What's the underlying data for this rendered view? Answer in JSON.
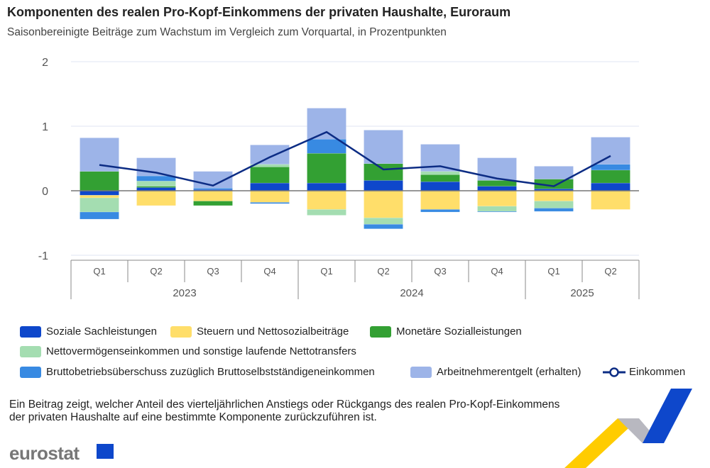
{
  "title": "Komponenten des realen Pro-Kopf-Einkommens der privaten Haushalte, Euroraum",
  "subtitle": "Saisonbereinigte Beiträge zum Wachstum im Vergleich zum Vorquartal, in Prozentpunkten",
  "note_line1": "Ein Beitrag zeigt, welcher Anteil des vierteljährlichen Anstiegs oder Rückgangs des realen Pro-Kopf-Einkommens",
  "note_line2": "der privaten Haushalte auf eine bestimmte Komponente zurückzuführen ist.",
  "logo": "eurostat",
  "chart_data": {
    "type": "bar",
    "stacked": true,
    "title": "Komponenten des realen Pro-Kopf-Einkommens der privaten Haushalte, Euroraum",
    "subtitle": "Saisonbereinigte Beiträge zum Wachstum im Vergleich zum Vorquartal, in Prozentpunkten",
    "categories": [
      "Q1",
      "Q2",
      "Q3",
      "Q4",
      "Q1",
      "Q2",
      "Q3",
      "Q4",
      "Q1",
      "Q2"
    ],
    "years": [
      {
        "label": "2023",
        "span": 4
      },
      {
        "label": "2024",
        "span": 4
      },
      {
        "label": "2025",
        "span": 2
      }
    ],
    "ylim": [
      -1,
      2
    ],
    "yticks": [
      "2",
      "1",
      "0",
      "-1"
    ],
    "grid": true,
    "legend_position": "bottom",
    "series": [
      {
        "name": "Soziale Sachleistungen",
        "color": "#0E47CB",
        "values": [
          -0.07,
          0.05,
          0.02,
          0.12,
          0.12,
          0.16,
          0.14,
          0.07,
          0.03,
          0.12
        ]
      },
      {
        "name": "Steuern und Nettosozialbeiträge",
        "color": "#FFDE6A",
        "values": [
          -0.04,
          -0.23,
          -0.16,
          -0.18,
          -0.29,
          -0.42,
          -0.29,
          -0.24,
          -0.16,
          -0.29
        ]
      },
      {
        "name": "Monetäre Sozialleistungen",
        "color": "#33A033",
        "values": [
          0.3,
          0.02,
          -0.07,
          0.25,
          0.46,
          0.26,
          0.11,
          0.09,
          0.15,
          0.2
        ]
      },
      {
        "name": "Nettovermögenseinkommen und sonstige laufende Nettotransfers",
        "color": "#A4DDB1",
        "values": [
          -0.22,
          0.08,
          0,
          0.04,
          -0.09,
          -0.1,
          0.05,
          -0.08,
          -0.11,
          0
        ]
      },
      {
        "name": "Bruttobetriebsüberschuss zuzüglich Bruttoselbstständigeneinkommen",
        "color": "#388AE2",
        "values": [
          -0.11,
          0.08,
          0.02,
          -0.02,
          0.22,
          -0.07,
          -0.04,
          -0.01,
          -0.05,
          0.09
        ]
      },
      {
        "name": "Arbeitnehmerentgelt (erhalten)",
        "color": "#9DB4E8",
        "values": [
          0.52,
          0.28,
          0.26,
          0.3,
          0.48,
          0.52,
          0.42,
          0.35,
          0.2,
          0.42
        ]
      }
    ],
    "line": {
      "name": "Einkommen",
      "color": "#0C2C84",
      "values": [
        0.4,
        0.28,
        0.08,
        0.52,
        0.91,
        0.33,
        0.38,
        0.19,
        0.07,
        0.54
      ]
    }
  }
}
